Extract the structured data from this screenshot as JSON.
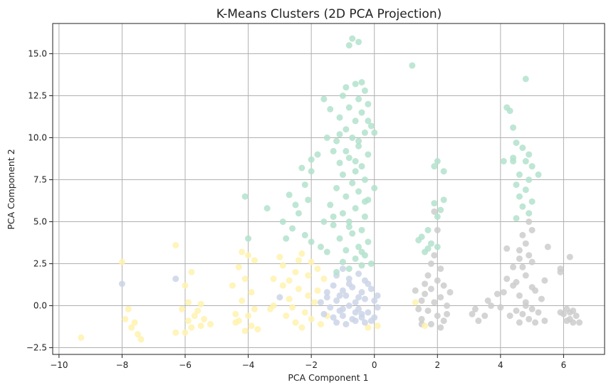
{
  "chart_data": {
    "type": "scatter",
    "title": "K-Means Clusters (2D PCA Projection)",
    "xlabel": "PCA Component 1",
    "ylabel": "PCA Component 2",
    "xlim": [
      -10.2,
      7.3
    ],
    "ylim": [
      -2.9,
      16.8
    ],
    "xticks": [
      -10,
      -8,
      -6,
      -4,
      -2,
      0,
      2,
      4,
      6
    ],
    "xtick_labels": [
      "−10",
      "−8",
      "−6",
      "−4",
      "−2",
      "0",
      "2",
      "4",
      "6"
    ],
    "yticks": [
      -2.5,
      0.0,
      2.5,
      5.0,
      7.5,
      10.0,
      12.5,
      15.0
    ],
    "ytick_labels": [
      "−2.5",
      "0.0",
      "2.5",
      "5.0",
      "7.5",
      "10.0",
      "12.5",
      "15.0"
    ],
    "grid": true,
    "legend": false,
    "series": [
      {
        "color": "#b3e2cd",
        "points": [
          [
            -0.7,
            15.9
          ],
          [
            -0.5,
            15.7
          ],
          [
            -0.8,
            15.5
          ],
          [
            -0.4,
            13.3
          ],
          [
            -0.6,
            13.2
          ],
          [
            -0.9,
            13.0
          ],
          [
            -0.3,
            12.8
          ],
          [
            -1.0,
            12.5
          ],
          [
            -0.5,
            12.3
          ],
          [
            -0.2,
            12.0
          ],
          [
            -0.8,
            11.8
          ],
          [
            -0.4,
            11.5
          ],
          [
            -1.1,
            11.2
          ],
          [
            -0.6,
            11.0
          ],
          [
            -0.1,
            10.7
          ],
          [
            -0.9,
            10.5
          ],
          [
            -0.3,
            10.3
          ],
          [
            -0.7,
            10.0
          ],
          [
            -1.2,
            9.8
          ],
          [
            -0.5,
            9.5
          ],
          [
            0.0,
            10.3
          ],
          [
            -1.5,
            10.0
          ],
          [
            -1.3,
            9.2
          ],
          [
            -0.2,
            9.0
          ],
          [
            -0.8,
            8.8
          ],
          [
            -1.1,
            8.5
          ],
          [
            -0.4,
            8.3
          ],
          [
            -0.6,
            8.0
          ],
          [
            -1.0,
            7.8
          ],
          [
            -0.3,
            7.5
          ],
          [
            -0.7,
            7.3
          ],
          [
            -1.2,
            7.0
          ],
          [
            -0.5,
            6.8
          ],
          [
            -0.9,
            6.5
          ],
          [
            -0.2,
            6.3
          ],
          [
            -1.4,
            6.0
          ],
          [
            -0.6,
            5.8
          ],
          [
            -1.0,
            5.5
          ],
          [
            -0.3,
            5.3
          ],
          [
            -0.8,
            5.0
          ],
          [
            -1.3,
            4.8
          ],
          [
            -0.4,
            4.5
          ],
          [
            -0.7,
            4.3
          ],
          [
            -1.1,
            4.0
          ],
          [
            -0.2,
            3.8
          ],
          [
            -0.5,
            3.5
          ],
          [
            -0.9,
            3.3
          ],
          [
            -1.5,
            3.2
          ],
          [
            -0.3,
            3.0
          ],
          [
            -0.6,
            2.8
          ],
          [
            -1.0,
            2.6
          ],
          [
            -0.4,
            2.4
          ],
          [
            -0.8,
            2.2
          ],
          [
            -1.2,
            2.0
          ],
          [
            -0.1,
            2.5
          ],
          [
            0.0,
            7.0
          ],
          [
            -1.6,
            5.0
          ],
          [
            -1.7,
            3.5
          ],
          [
            -2.0,
            8.7
          ],
          [
            -2.3,
            8.2
          ],
          [
            -2.2,
            7.2
          ],
          [
            -2.5,
            6.0
          ],
          [
            -2.7,
            6.6
          ],
          [
            -2.1,
            6.3
          ],
          [
            -2.9,
            5.0
          ],
          [
            -2.4,
            5.5
          ],
          [
            -2.6,
            4.6
          ],
          [
            -2.2,
            4.2
          ],
          [
            -2.0,
            3.8
          ],
          [
            -2.8,
            4.0
          ],
          [
            -3.4,
            5.8
          ],
          [
            -4.1,
            6.5
          ],
          [
            -4.0,
            4.0
          ],
          [
            -1.8,
            9.0
          ],
          [
            -1.6,
            12.3
          ],
          [
            -2.0,
            8.0
          ],
          [
            -1.4,
            11.7
          ],
          [
            -0.2,
            11.0
          ],
          [
            -0.5,
            9.8
          ],
          [
            -0.9,
            9.2
          ],
          [
            -1.1,
            10.2
          ],
          [
            -0.6,
            8.6
          ],
          [
            -0.3,
            6.2
          ],
          [
            -1.3,
            5.3
          ],
          [
            -0.8,
            4.7
          ],
          [
            -0.4,
            3.2
          ],
          [
            1.2,
            14.3
          ],
          [
            2.0,
            8.6
          ],
          [
            1.9,
            8.3
          ],
          [
            2.2,
            8.0
          ],
          [
            1.9,
            6.1
          ],
          [
            2.1,
            5.7
          ],
          [
            2.0,
            5.3
          ],
          [
            2.2,
            6.3
          ],
          [
            1.7,
            4.5
          ],
          [
            1.5,
            4.1
          ],
          [
            2.0,
            3.5
          ],
          [
            1.8,
            3.7
          ],
          [
            1.4,
            3.9
          ],
          [
            1.7,
            3.4
          ],
          [
            1.6,
            3.2
          ],
          [
            4.8,
            13.5
          ],
          [
            4.2,
            11.8
          ],
          [
            4.3,
            11.6
          ],
          [
            4.4,
            10.6
          ],
          [
            4.5,
            9.7
          ],
          [
            4.7,
            9.4
          ],
          [
            4.9,
            9.0
          ],
          [
            4.4,
            8.6
          ],
          [
            4.8,
            8.6
          ],
          [
            5.0,
            8.3
          ],
          [
            4.6,
            7.8
          ],
          [
            4.9,
            7.5
          ],
          [
            5.2,
            7.8
          ],
          [
            4.5,
            7.2
          ],
          [
            4.8,
            6.9
          ],
          [
            4.6,
            6.5
          ],
          [
            5.0,
            6.2
          ],
          [
            4.7,
            5.9
          ],
          [
            4.9,
            5.5
          ],
          [
            4.5,
            5.2
          ],
          [
            4.1,
            8.6
          ],
          [
            4.4,
            8.8
          ]
        ]
      },
      {
        "color": "#fff2ae",
        "points": [
          [
            -9.3,
            -1.9
          ],
          [
            -8.0,
            2.6
          ],
          [
            -7.8,
            -0.2
          ],
          [
            -7.9,
            -0.8
          ],
          [
            -7.6,
            -1.0
          ],
          [
            -7.5,
            -1.7
          ],
          [
            -7.4,
            -2.0
          ],
          [
            -7.7,
            -1.3
          ],
          [
            -6.3,
            3.6
          ],
          [
            -6.0,
            1.2
          ],
          [
            -5.8,
            2.0
          ],
          [
            -5.9,
            0.2
          ],
          [
            -6.1,
            -0.2
          ],
          [
            -5.7,
            -0.6
          ],
          [
            -5.9,
            -0.9
          ],
          [
            -5.5,
            -1.2
          ],
          [
            -6.0,
            -1.6
          ],
          [
            -5.6,
            -0.3
          ],
          [
            -5.4,
            -0.8
          ],
          [
            -5.8,
            -1.3
          ],
          [
            -6.3,
            -1.6
          ],
          [
            -5.2,
            -1.1
          ],
          [
            -5.5,
            0.1
          ],
          [
            -4.4,
            -0.5
          ],
          [
            -4.2,
            3.2
          ],
          [
            -4.0,
            3.0
          ],
          [
            -4.3,
            2.3
          ],
          [
            -4.5,
            1.2
          ],
          [
            -4.1,
            1.6
          ],
          [
            -3.9,
            0.8
          ],
          [
            -4.2,
            0.3
          ],
          [
            -3.8,
            -0.2
          ],
          [
            -4.0,
            -0.6
          ],
          [
            -4.3,
            -0.9
          ],
          [
            -3.9,
            -1.2
          ],
          [
            -4.1,
            -1.5
          ],
          [
            -3.7,
            -1.4
          ],
          [
            -4.4,
            -1.0
          ],
          [
            -3.8,
            2.7
          ],
          [
            -3.2,
            1.6
          ],
          [
            -3.3,
            -0.2
          ],
          [
            -3.0,
            2.9
          ],
          [
            -2.9,
            2.4
          ],
          [
            -2.5,
            2.0
          ],
          [
            -2.3,
            3.1
          ],
          [
            -2.0,
            2.6
          ],
          [
            -1.8,
            2.2
          ],
          [
            -2.7,
            1.5
          ],
          [
            -2.4,
            1.0
          ],
          [
            -2.1,
            0.6
          ],
          [
            -1.9,
            0.2
          ],
          [
            -2.6,
            -0.1
          ],
          [
            -2.2,
            -0.4
          ],
          [
            -2.8,
            -0.6
          ],
          [
            -2.0,
            -0.8
          ],
          [
            -2.5,
            -1.0
          ],
          [
            -2.3,
            -1.3
          ],
          [
            -1.7,
            -1.1
          ],
          [
            -2.9,
            1.2
          ],
          [
            -1.6,
            1.6
          ],
          [
            -3.2,
            0.0
          ],
          [
            -2.7,
            0.4
          ],
          [
            -1.8,
            0.9
          ],
          [
            -2.4,
            2.7
          ],
          [
            -1.5,
            -0.6
          ],
          [
            -2.1,
            1.8
          ],
          [
            -0.2,
            -1.3
          ],
          [
            0.1,
            -1.2
          ],
          [
            1.3,
            0.2
          ],
          [
            1.6,
            -1.2
          ]
        ]
      },
      {
        "color": "#cbd5e8",
        "points": [
          [
            -8.0,
            1.3
          ],
          [
            -6.3,
            1.6
          ],
          [
            -3.0,
            0.5
          ],
          [
            -1.2,
            1.8
          ],
          [
            -1.0,
            2.2
          ],
          [
            -0.8,
            1.6
          ],
          [
            -0.5,
            1.9
          ],
          [
            -0.3,
            1.5
          ],
          [
            -1.3,
            1.2
          ],
          [
            -1.0,
            0.9
          ],
          [
            -0.7,
            1.1
          ],
          [
            -0.4,
            0.8
          ],
          [
            -0.1,
            1.0
          ],
          [
            -1.5,
            0.5
          ],
          [
            -1.2,
            0.3
          ],
          [
            -0.9,
            0.6
          ],
          [
            -0.6,
            0.2
          ],
          [
            -0.3,
            0.4
          ],
          [
            0.0,
            0.3
          ],
          [
            -1.4,
            -0.1
          ],
          [
            -1.1,
            -0.3
          ],
          [
            -0.8,
            0.0
          ],
          [
            -0.5,
            -0.2
          ],
          [
            -0.2,
            -0.4
          ],
          [
            0.1,
            -0.1
          ],
          [
            -1.6,
            -0.5
          ],
          [
            -1.3,
            -0.7
          ],
          [
            -1.0,
            -0.6
          ],
          [
            -0.7,
            -0.8
          ],
          [
            -0.4,
            -0.5
          ],
          [
            -0.1,
            -0.9
          ],
          [
            -1.2,
            -1.0
          ],
          [
            -0.9,
            -1.1
          ],
          [
            -0.6,
            -0.9
          ],
          [
            -0.3,
            -1.0
          ],
          [
            0.0,
            -0.7
          ],
          [
            -1.5,
            0.8
          ],
          [
            -0.2,
            1.3
          ],
          [
            -0.8,
            1.3
          ],
          [
            -1.1,
            0.6
          ],
          [
            -0.5,
            0.5
          ],
          [
            -0.4,
            -0.7
          ],
          [
            -1.0,
            -0.2
          ],
          [
            0.1,
            0.6
          ],
          [
            -1.7,
            0.2
          ],
          [
            -0.6,
            -0.4
          ]
        ]
      },
      {
        "color": "#cccccc",
        "points": [
          [
            1.9,
            5.6
          ],
          [
            2.0,
            4.5
          ],
          [
            1.9,
            3.0
          ],
          [
            1.8,
            2.5
          ],
          [
            2.1,
            2.2
          ],
          [
            1.7,
            1.8
          ],
          [
            2.0,
            1.5
          ],
          [
            2.2,
            1.2
          ],
          [
            1.8,
            1.0
          ],
          [
            1.6,
            0.7
          ],
          [
            2.1,
            0.5
          ],
          [
            1.9,
            0.2
          ],
          [
            2.3,
            0.0
          ],
          [
            1.7,
            -0.3
          ],
          [
            2.0,
            -0.6
          ],
          [
            2.2,
            -0.9
          ],
          [
            1.8,
            -1.1
          ],
          [
            2.1,
            -1.3
          ],
          [
            1.5,
            0.3
          ],
          [
            1.4,
            -0.2
          ],
          [
            2.4,
            0.8
          ],
          [
            2.3,
            -0.5
          ],
          [
            1.6,
            1.3
          ],
          [
            1.5,
            -0.8
          ],
          [
            1.3,
            0.9
          ],
          [
            1.5,
            -1.1
          ],
          [
            3.2,
            -0.2
          ],
          [
            3.5,
            -0.6
          ],
          [
            3.3,
            -0.9
          ],
          [
            3.7,
            0.0
          ],
          [
            3.9,
            0.7
          ],
          [
            4.0,
            -0.1
          ],
          [
            3.6,
            0.3
          ],
          [
            3.1,
            -0.5
          ],
          [
            4.1,
            0.8
          ],
          [
            4.2,
            1.6
          ],
          [
            4.4,
            2.3
          ],
          [
            4.2,
            3.4
          ],
          [
            4.4,
            1.2
          ],
          [
            4.6,
            0.6
          ],
          [
            4.8,
            0.2
          ],
          [
            5.0,
            -0.2
          ],
          [
            4.7,
            -0.5
          ],
          [
            4.9,
            -0.8
          ],
          [
            5.1,
            -1.0
          ],
          [
            4.5,
            -0.3
          ],
          [
            4.6,
            2.8
          ],
          [
            4.8,
            3.7
          ],
          [
            5.0,
            4.5
          ],
          [
            4.7,
            4.2
          ],
          [
            4.9,
            5.0
          ],
          [
            4.6,
            3.3
          ],
          [
            5.0,
            2.6
          ],
          [
            4.8,
            1.8
          ],
          [
            4.5,
            1.4
          ],
          [
            5.1,
            0.9
          ],
          [
            5.3,
            0.4
          ],
          [
            4.3,
            -0.6
          ],
          [
            5.5,
            3.5
          ],
          [
            5.4,
            1.5
          ],
          [
            5.2,
            -0.4
          ],
          [
            5.4,
            -0.9
          ],
          [
            4.6,
            -1.0
          ],
          [
            5.9,
            2.2
          ],
          [
            5.9,
            2.0
          ],
          [
            6.2,
            2.9
          ],
          [
            5.9,
            -0.4
          ],
          [
            6.1,
            -0.2
          ],
          [
            6.2,
            -0.8
          ],
          [
            6.0,
            -0.5
          ],
          [
            6.3,
            -1.0
          ],
          [
            6.4,
            -0.6
          ],
          [
            6.2,
            -0.4
          ],
          [
            6.5,
            -1.0
          ],
          [
            6.1,
            -0.9
          ],
          [
            6.3,
            -0.3
          ],
          [
            4.8,
            0.0
          ],
          [
            5.0,
            1.1
          ],
          [
            4.9,
            3.0
          ],
          [
            4.7,
            2.3
          ]
        ]
      }
    ]
  }
}
